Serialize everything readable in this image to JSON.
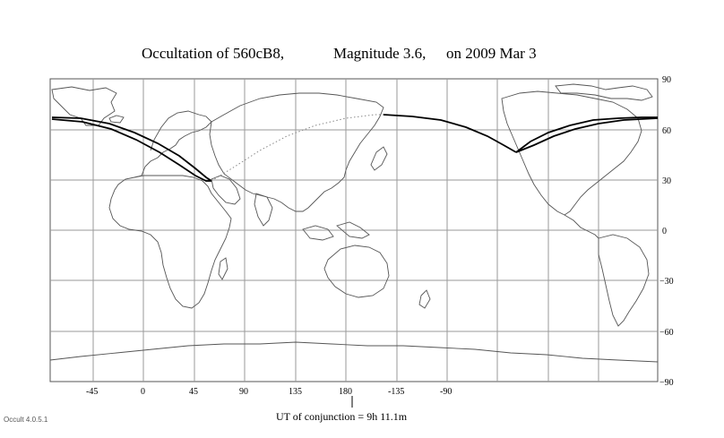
{
  "title": {
    "object": "Occultation  of  560cB8,",
    "magnitude": "Magnitude 3.6,",
    "date": "on  2009 Mar  3"
  },
  "map": {
    "lon_ticks": [
      "-45",
      "0",
      "45",
      "90",
      "135",
      "180",
      "-135",
      "-90"
    ],
    "lat_ticks": [
      "90",
      "60",
      "30",
      "0",
      "−30",
      "−60",
      "−90"
    ],
    "grid": true,
    "line_color": "#000000",
    "coast_color": "#555555"
  },
  "conjunction": {
    "label": "UT of conjunction =  9h 11.1m"
  },
  "version": "Occult 4.0.5.1"
}
